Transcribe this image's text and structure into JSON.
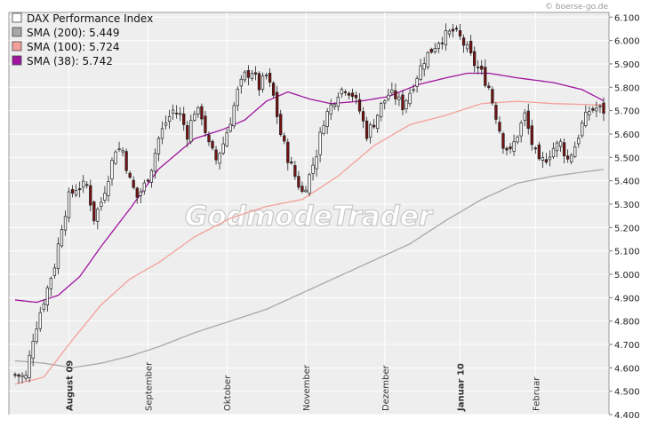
{
  "source_label": "© boerse-go.de",
  "watermark": "GodmodeTrader",
  "legend": [
    {
      "label": "DAX Performance Index",
      "color": "#ffffff"
    },
    {
      "label": "SMA (200): 5.449",
      "color": "#a8a8a8"
    },
    {
      "label": "SMA (100): 5.724",
      "color": "#f4a09a"
    },
    {
      "label": "SMA (38): 5.742",
      "color": "#a0149e"
    }
  ],
  "colors": {
    "up_candle": "#ffffff",
    "down_candle": "#7a1010",
    "background": "#eeeeee",
    "grid": "#ffffff"
  },
  "chart_data": {
    "type": "candlestick",
    "y_ticks": [
      "6.100",
      "6.000",
      "5.900",
      "5.800",
      "5.700",
      "5.600",
      "5.500",
      "5.400",
      "5.300",
      "5.200",
      "5.100",
      "5.000",
      "4.900",
      "4.800",
      "4.700",
      "4.600",
      "4.500",
      "4.400"
    ],
    "ylim": [
      4400,
      6120
    ],
    "x_ticks": [
      {
        "label": "August 09",
        "index": 15,
        "bold": true
      },
      {
        "label": "September",
        "index": 37,
        "bold": false
      },
      {
        "label": "Oktober",
        "index": 59,
        "bold": false
      },
      {
        "label": "November",
        "index": 81,
        "bold": false
      },
      {
        "label": "Dezember",
        "index": 103,
        "bold": false
      },
      {
        "label": "Januar 10",
        "index": 124,
        "bold": true
      },
      {
        "label": "Februar",
        "index": 145,
        "bold": false
      }
    ],
    "n_bars": 165,
    "close_keypoints": [
      [
        0,
        4570
      ],
      [
        3,
        4560
      ],
      [
        5,
        4730
      ],
      [
        7,
        4840
      ],
      [
        9,
        4940
      ],
      [
        11,
        5040
      ],
      [
        13,
        5210
      ],
      [
        15,
        5330
      ],
      [
        17,
        5370
      ],
      [
        20,
        5380
      ],
      [
        22,
        5240
      ],
      [
        24,
        5310
      ],
      [
        26,
        5420
      ],
      [
        28,
        5540
      ],
      [
        30,
        5530
      ],
      [
        32,
        5400
      ],
      [
        34,
        5330
      ],
      [
        36,
        5380
      ],
      [
        38,
        5460
      ],
      [
        40,
        5580
      ],
      [
        42,
        5650
      ],
      [
        44,
        5700
      ],
      [
        46,
        5680
      ],
      [
        48,
        5600
      ],
      [
        50,
        5700
      ],
      [
        52,
        5680
      ],
      [
        54,
        5550
      ],
      [
        56,
        5490
      ],
      [
        58,
        5560
      ],
      [
        60,
        5660
      ],
      [
        62,
        5780
      ],
      [
        64,
        5850
      ],
      [
        66,
        5870
      ],
      [
        68,
        5800
      ],
      [
        70,
        5850
      ],
      [
        72,
        5760
      ],
      [
        74,
        5600
      ],
      [
        76,
        5500
      ],
      [
        78,
        5420
      ],
      [
        80,
        5350
      ],
      [
        82,
        5420
      ],
      [
        84,
        5520
      ],
      [
        86,
        5660
      ],
      [
        88,
        5720
      ],
      [
        90,
        5780
      ],
      [
        92,
        5800
      ],
      [
        94,
        5770
      ],
      [
        96,
        5700
      ],
      [
        98,
        5600
      ],
      [
        100,
        5650
      ],
      [
        102,
        5720
      ],
      [
        104,
        5770
      ],
      [
        106,
        5760
      ],
      [
        108,
        5720
      ],
      [
        110,
        5780
      ],
      [
        112,
        5850
      ],
      [
        114,
        5920
      ],
      [
        116,
        5960
      ],
      [
        118,
        6000
      ],
      [
        120,
        6020
      ],
      [
        122,
        6040
      ],
      [
        124,
        6010
      ],
      [
        126,
        5960
      ],
      [
        128,
        5900
      ],
      [
        130,
        5860
      ],
      [
        132,
        5800
      ],
      [
        134,
        5680
      ],
      [
        136,
        5560
      ],
      [
        138,
        5520
      ],
      [
        140,
        5600
      ],
      [
        142,
        5680
      ],
      [
        144,
        5560
      ],
      [
        146,
        5470
      ],
      [
        148,
        5500
      ],
      [
        150,
        5540
      ],
      [
        152,
        5560
      ],
      [
        154,
        5490
      ],
      [
        156,
        5550
      ],
      [
        158,
        5640
      ],
      [
        160,
        5700
      ],
      [
        162,
        5710
      ],
      [
        164,
        5700
      ]
    ],
    "sma200_keypoints": [
      [
        0,
        4630
      ],
      [
        8,
        4620
      ],
      [
        16,
        4600
      ],
      [
        24,
        4620
      ],
      [
        32,
        4650
      ],
      [
        40,
        4690
      ],
      [
        50,
        4750
      ],
      [
        60,
        4800
      ],
      [
        70,
        4850
      ],
      [
        80,
        4920
      ],
      [
        90,
        4990
      ],
      [
        100,
        5060
      ],
      [
        110,
        5130
      ],
      [
        120,
        5230
      ],
      [
        130,
        5320
      ],
      [
        140,
        5390
      ],
      [
        150,
        5420
      ],
      [
        164,
        5449
      ]
    ],
    "sma100_keypoints": [
      [
        0,
        4530
      ],
      [
        8,
        4560
      ],
      [
        16,
        4720
      ],
      [
        24,
        4870
      ],
      [
        32,
        4980
      ],
      [
        40,
        5050
      ],
      [
        50,
        5160
      ],
      [
        60,
        5240
      ],
      [
        70,
        5290
      ],
      [
        80,
        5320
      ],
      [
        90,
        5420
      ],
      [
        100,
        5550
      ],
      [
        110,
        5640
      ],
      [
        120,
        5680
      ],
      [
        130,
        5730
      ],
      [
        140,
        5740
      ],
      [
        150,
        5730
      ],
      [
        164,
        5724
      ]
    ],
    "sma38_keypoints": [
      [
        0,
        4890
      ],
      [
        6,
        4880
      ],
      [
        12,
        4910
      ],
      [
        18,
        4990
      ],
      [
        24,
        5120
      ],
      [
        32,
        5280
      ],
      [
        40,
        5450
      ],
      [
        50,
        5580
      ],
      [
        58,
        5620
      ],
      [
        64,
        5660
      ],
      [
        70,
        5740
      ],
      [
        76,
        5780
      ],
      [
        82,
        5750
      ],
      [
        88,
        5730
      ],
      [
        96,
        5740
      ],
      [
        104,
        5760
      ],
      [
        112,
        5810
      ],
      [
        120,
        5840
      ],
      [
        126,
        5860
      ],
      [
        132,
        5860
      ],
      [
        140,
        5840
      ],
      [
        150,
        5820
      ],
      [
        158,
        5790
      ],
      [
        164,
        5742
      ]
    ]
  }
}
